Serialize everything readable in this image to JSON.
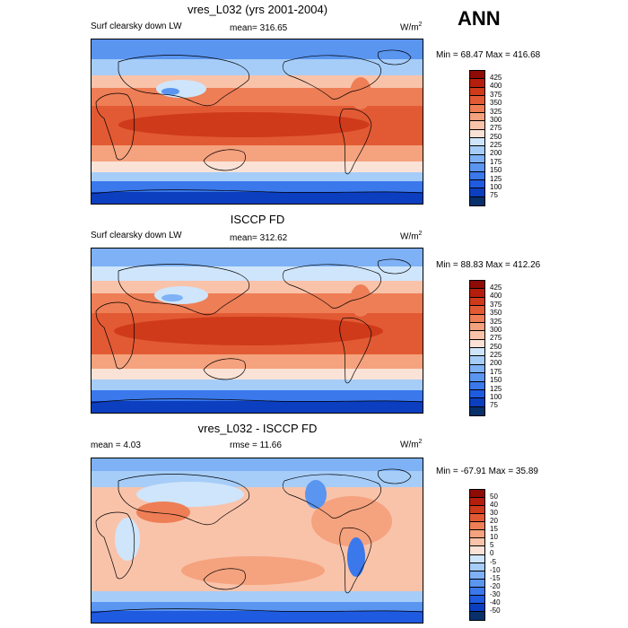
{
  "season": "ANN",
  "colors": {
    "abs_scale": [
      "#08306b",
      "#0c3ec0",
      "#1f5be0",
      "#3a78ec",
      "#5a95f0",
      "#7eb1f5",
      "#a6cdf8",
      "#cfe5fb",
      "#fbe2d6",
      "#f9c3aa",
      "#f5a27e",
      "#ee7e56",
      "#e25a34",
      "#cf3a1a",
      "#b51e0c",
      "#8e0b06"
    ],
    "diff_scale": [
      "#08306b",
      "#0c3ec0",
      "#1f5be0",
      "#3a78ec",
      "#5a95f0",
      "#7eb1f5",
      "#a6cdf8",
      "#cfe5fb",
      "#fbe2d6",
      "#f9c3aa",
      "#f5a27e",
      "#ee7e56",
      "#e25a34",
      "#cf3a1a",
      "#b51e0c",
      "#8e0b06"
    ]
  },
  "panels": [
    {
      "title": "vres_L032 (yrs 2001-2004)",
      "left_label": "Surf clearsky down LW",
      "center_label": "mean= 316.65",
      "units_base": "W/m",
      "units_exp": "2",
      "minmax": "Min =  68.47 Max = 416.68",
      "ticks": [
        "425",
        "400",
        "375",
        "350",
        "325",
        "300",
        "275",
        "250",
        "225",
        "200",
        "175",
        "150",
        "125",
        "100",
        "75"
      ]
    },
    {
      "title": "ISCCP FD",
      "left_label": "Surf clearsky down LW",
      "center_label": "mean= 312.62",
      "units_base": "W/m",
      "units_exp": "2",
      "minmax": "Min =  88.83 Max = 412.26",
      "ticks": [
        "425",
        "400",
        "375",
        "350",
        "325",
        "300",
        "275",
        "250",
        "225",
        "200",
        "175",
        "150",
        "125",
        "100",
        "75"
      ]
    },
    {
      "title": "vres_L032 - ISCCP FD",
      "left_label": "mean =   4.03",
      "center_label": "rmse =   11.66",
      "units_base": "W/m",
      "units_exp": "2",
      "minmax": "Min = -67.91 Max =  35.89",
      "ticks": [
        "50",
        "40",
        "30",
        "20",
        "15",
        "10",
        "5",
        "0",
        "-5",
        "-10",
        "-15",
        "-20",
        "-30",
        "-40",
        "-50"
      ]
    }
  ]
}
